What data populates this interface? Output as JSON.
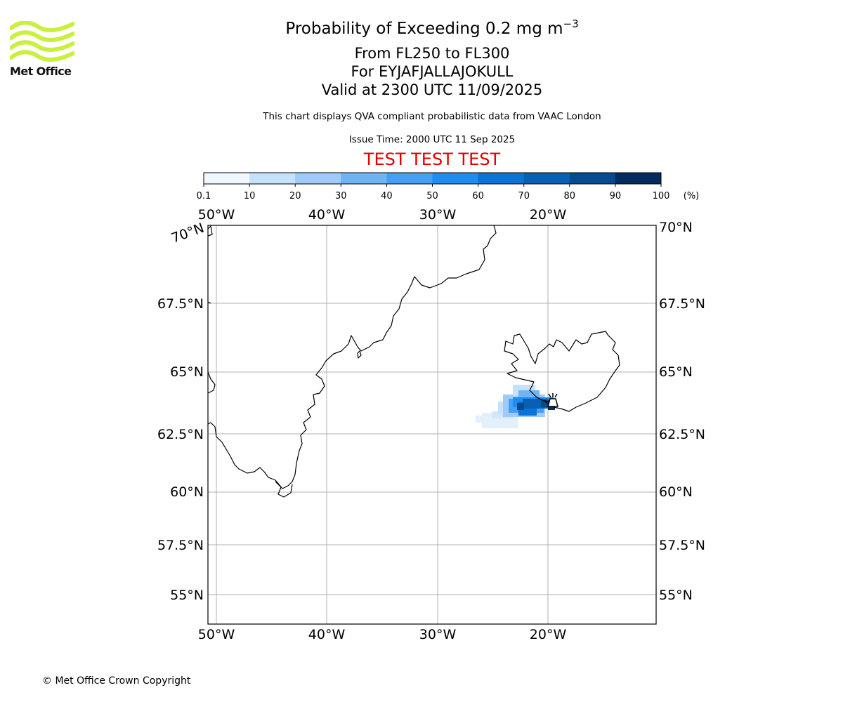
{
  "logo": {
    "text": "Met Office",
    "wave_color": "#c8f03c"
  },
  "title": {
    "line1_main": "Probability of Exceeding 0.2 mg m",
    "line1_sup": "−3",
    "line2": "From FL250 to FL300",
    "line3": "For EYJAFJALLAJOKULL",
    "line4": "Valid at 2300 UTC 11/09/2025"
  },
  "subtitle": "This chart displays QVA compliant probabilistic data from VAAC London",
  "issue_time": "Issue Time: 2000 UTC 11 Sep 2025",
  "test_banner": {
    "text": "TEST TEST TEST",
    "color": "#e00000"
  },
  "colorbar": {
    "ticks": [
      "0.1",
      "10",
      "20",
      "30",
      "40",
      "50",
      "60",
      "70",
      "80",
      "90",
      "100"
    ],
    "unit": "(%)",
    "colors": [
      "#f0f7ff",
      "#c6e1fb",
      "#9ecbf7",
      "#70b4f4",
      "#45a0f2",
      "#1f8cef",
      "#0c73d6",
      "#0860b5",
      "#044b90",
      "#002d5e"
    ]
  },
  "map": {
    "lon_labels": [
      "50°W",
      "40°W",
      "30°W",
      "20°W"
    ],
    "lat_labels": [
      "70°N",
      "67.5°N",
      "65°N",
      "62.5°N",
      "60°N",
      "57.5°N",
      "55°N"
    ],
    "volcano_name": "EYJAFJALLAJOKULL",
    "gridline_color": "#b0b0b0",
    "coast_color": "#000000"
  },
  "copyright": "© Met Office Crown Copyright"
}
